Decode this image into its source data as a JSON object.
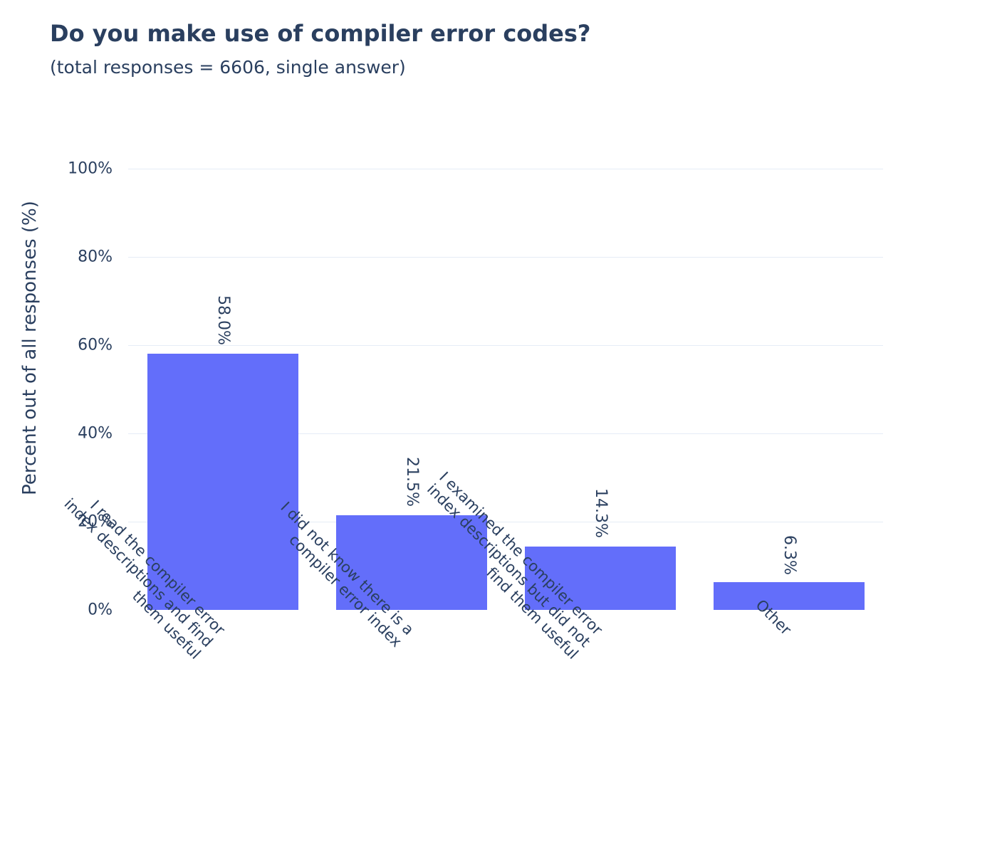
{
  "header": {
    "title": "Do you make use of compiler error codes?",
    "subtitle": "(total responses = 6606, single answer)"
  },
  "colors": {
    "bar": "#636efa",
    "text": "#2a3f5f",
    "grid": "#e5ecf6"
  },
  "chart_data": {
    "type": "bar",
    "title": "Do you make use of compiler error codes?",
    "subtitle": "(total responses = 6606, single answer)",
    "xlabel": "",
    "ylabel": "Percent out of all responses (%)",
    "ylim": [
      0,
      100
    ],
    "yticks": [
      "0%",
      "20%",
      "40%",
      "60%",
      "80%",
      "100%"
    ],
    "grid": true,
    "legend": null,
    "categories": [
      "I read the compiler error\nindex descriptions and find\nthem useful",
      "I did not know there is a\ncompiler error index",
      "I examined the compiler error\nindex descriptions but did not\nfind them useful",
      "Other"
    ],
    "values": [
      58.0,
      21.5,
      14.3,
      6.3
    ],
    "value_labels": [
      "58.0%",
      "21.5%",
      "14.3%",
      "6.3%"
    ]
  }
}
